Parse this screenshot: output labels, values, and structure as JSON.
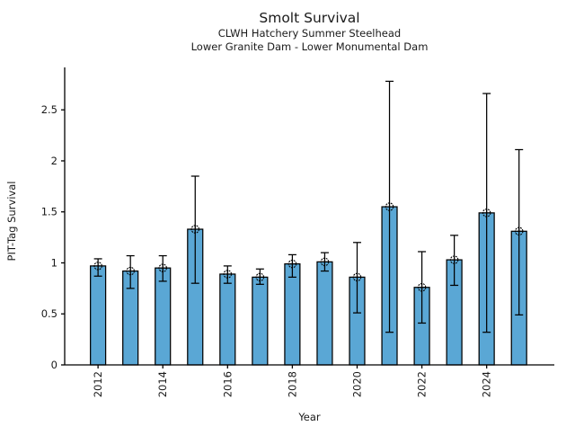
{
  "figure": {
    "background": "#ffffff"
  },
  "chart_data": {
    "type": "bar",
    "title": "Smolt Survival",
    "subtitle_line1": "CLWH Hatchery Summer Steelhead",
    "subtitle_line2": "Lower Granite Dam - Lower Monumental Dam",
    "xlabel": "Year",
    "ylabel": "PIT-Tag Survival",
    "categories": [
      2012,
      2013,
      2014,
      2015,
      2016,
      2017,
      2018,
      2019,
      2020,
      2021,
      2022,
      2023,
      2024,
      2025
    ],
    "series": [
      {
        "name": "PIT-Tag Survival estimate",
        "values": [
          0.97,
          0.92,
          0.95,
          1.33,
          0.89,
          0.86,
          0.99,
          1.01,
          0.86,
          1.55,
          0.76,
          1.03,
          1.49,
          1.31
        ],
        "ci_low": [
          0.87,
          0.75,
          0.82,
          0.8,
          0.8,
          0.79,
          0.86,
          0.92,
          0.51,
          0.32,
          0.41,
          0.78,
          0.32,
          0.49
        ],
        "ci_high": [
          1.04,
          1.07,
          1.07,
          1.85,
          0.97,
          0.94,
          1.08,
          1.1,
          1.2,
          2.78,
          1.11,
          1.27,
          2.66,
          2.11
        ]
      }
    ],
    "yticks": [
      0,
      0.5,
      1,
      1.5,
      2,
      2.5
    ],
    "ytick_labels": [
      "0",
      "0.5",
      "1",
      "1.5",
      "2",
      "2.5"
    ],
    "xticks": [
      2012,
      2014,
      2016,
      2018,
      2020,
      2022,
      2024
    ],
    "xtick_labels": [
      "2012",
      "2014",
      "2016",
      "2018",
      "2020",
      "2022",
      "2024"
    ],
    "ylim": [
      0,
      2.916
    ],
    "xlim": [
      2010.97,
      2026.09
    ],
    "bar_width_years": 0.47,
    "grid": false,
    "legend": null,
    "marker_style": "open-circle-crosshair",
    "colors": {
      "bar_fill": "#5aa7d5",
      "bar_edge": "#000000",
      "error_bar": "#000000",
      "axis": "#000000",
      "text": "#1a1a1a"
    }
  }
}
